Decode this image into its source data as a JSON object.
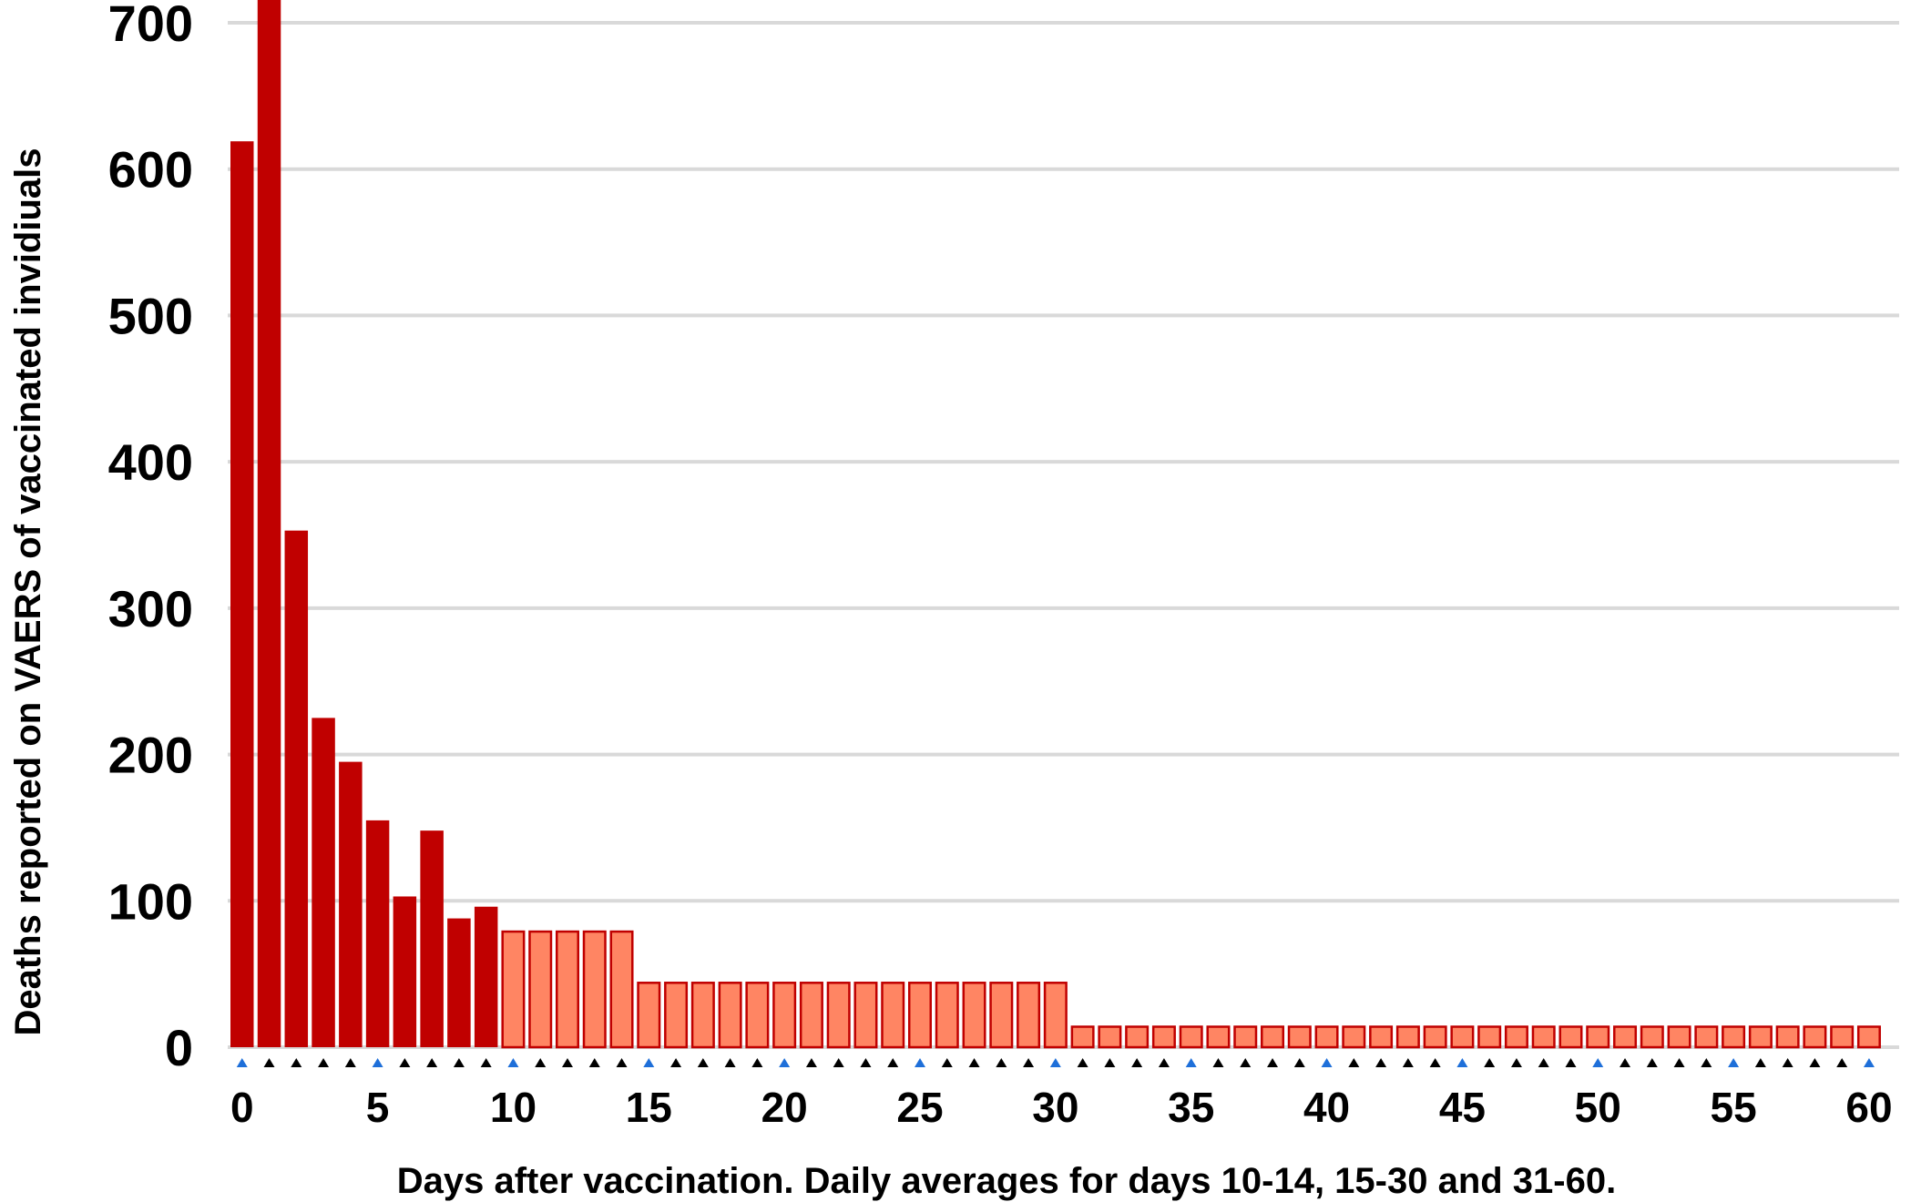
{
  "chart_data": {
    "type": "bar",
    "title": "",
    "xlabel": "Days after vaccination. Daily averages for days 10-14, 15-30 and 31-60.",
    "ylabel": "Deaths reported on VAERS of vaccinated invidiuals",
    "ylim": [
      0,
      700
    ],
    "y_ticks": [
      0,
      100,
      200,
      300,
      400,
      500,
      600,
      700
    ],
    "xlim": [
      0,
      60
    ],
    "x_ticks": [
      0,
      5,
      10,
      15,
      20,
      25,
      30,
      35,
      40,
      45,
      50,
      55,
      60
    ],
    "grid": true,
    "x": [
      0,
      1,
      2,
      3,
      4,
      5,
      6,
      7,
      8,
      9,
      10,
      11,
      12,
      13,
      14,
      15,
      16,
      17,
      18,
      19,
      20,
      21,
      22,
      23,
      24,
      25,
      26,
      27,
      28,
      29,
      30,
      31,
      32,
      33,
      34,
      35,
      36,
      37,
      38,
      39,
      40,
      41,
      42,
      43,
      44,
      45,
      46,
      47,
      48,
      49,
      50,
      51,
      52,
      53,
      54,
      55,
      56,
      57,
      58,
      59,
      60
    ],
    "values": [
      619,
      735,
      353,
      225,
      195,
      155,
      103,
      148,
      88,
      96,
      79,
      79,
      79,
      79,
      79,
      44,
      44,
      44,
      44,
      44,
      44,
      44,
      44,
      44,
      44,
      44,
      44,
      44,
      44,
      44,
      44,
      14,
      14,
      14,
      14,
      14,
      14,
      14,
      14,
      14,
      14,
      14,
      14,
      14,
      14,
      14,
      14,
      14,
      14,
      14,
      14,
      14,
      14,
      14,
      14,
      14,
      14,
      14,
      14,
      14,
      14
    ],
    "segments": [
      {
        "range": [
          0,
          9
        ],
        "kind": "daily",
        "fill": "#c00000",
        "stroke": "#c00000"
      },
      {
        "range": [
          10,
          14
        ],
        "kind": "average",
        "fill": "#ff8563",
        "stroke": "#c00000"
      },
      {
        "range": [
          15,
          30
        ],
        "kind": "average",
        "fill": "#ff8563",
        "stroke": "#c00000"
      },
      {
        "range": [
          31,
          60
        ],
        "kind": "average",
        "fill": "#ff8563",
        "stroke": "#c00000"
      }
    ],
    "colors": {
      "daily_bar": "#c00000",
      "average_bar": "#ff8563",
      "bar_outline": "#c00000",
      "gridline": "#d9d9d9",
      "tick_marker": "#000000",
      "tick_marker_major": "#1e6fd9"
    }
  }
}
